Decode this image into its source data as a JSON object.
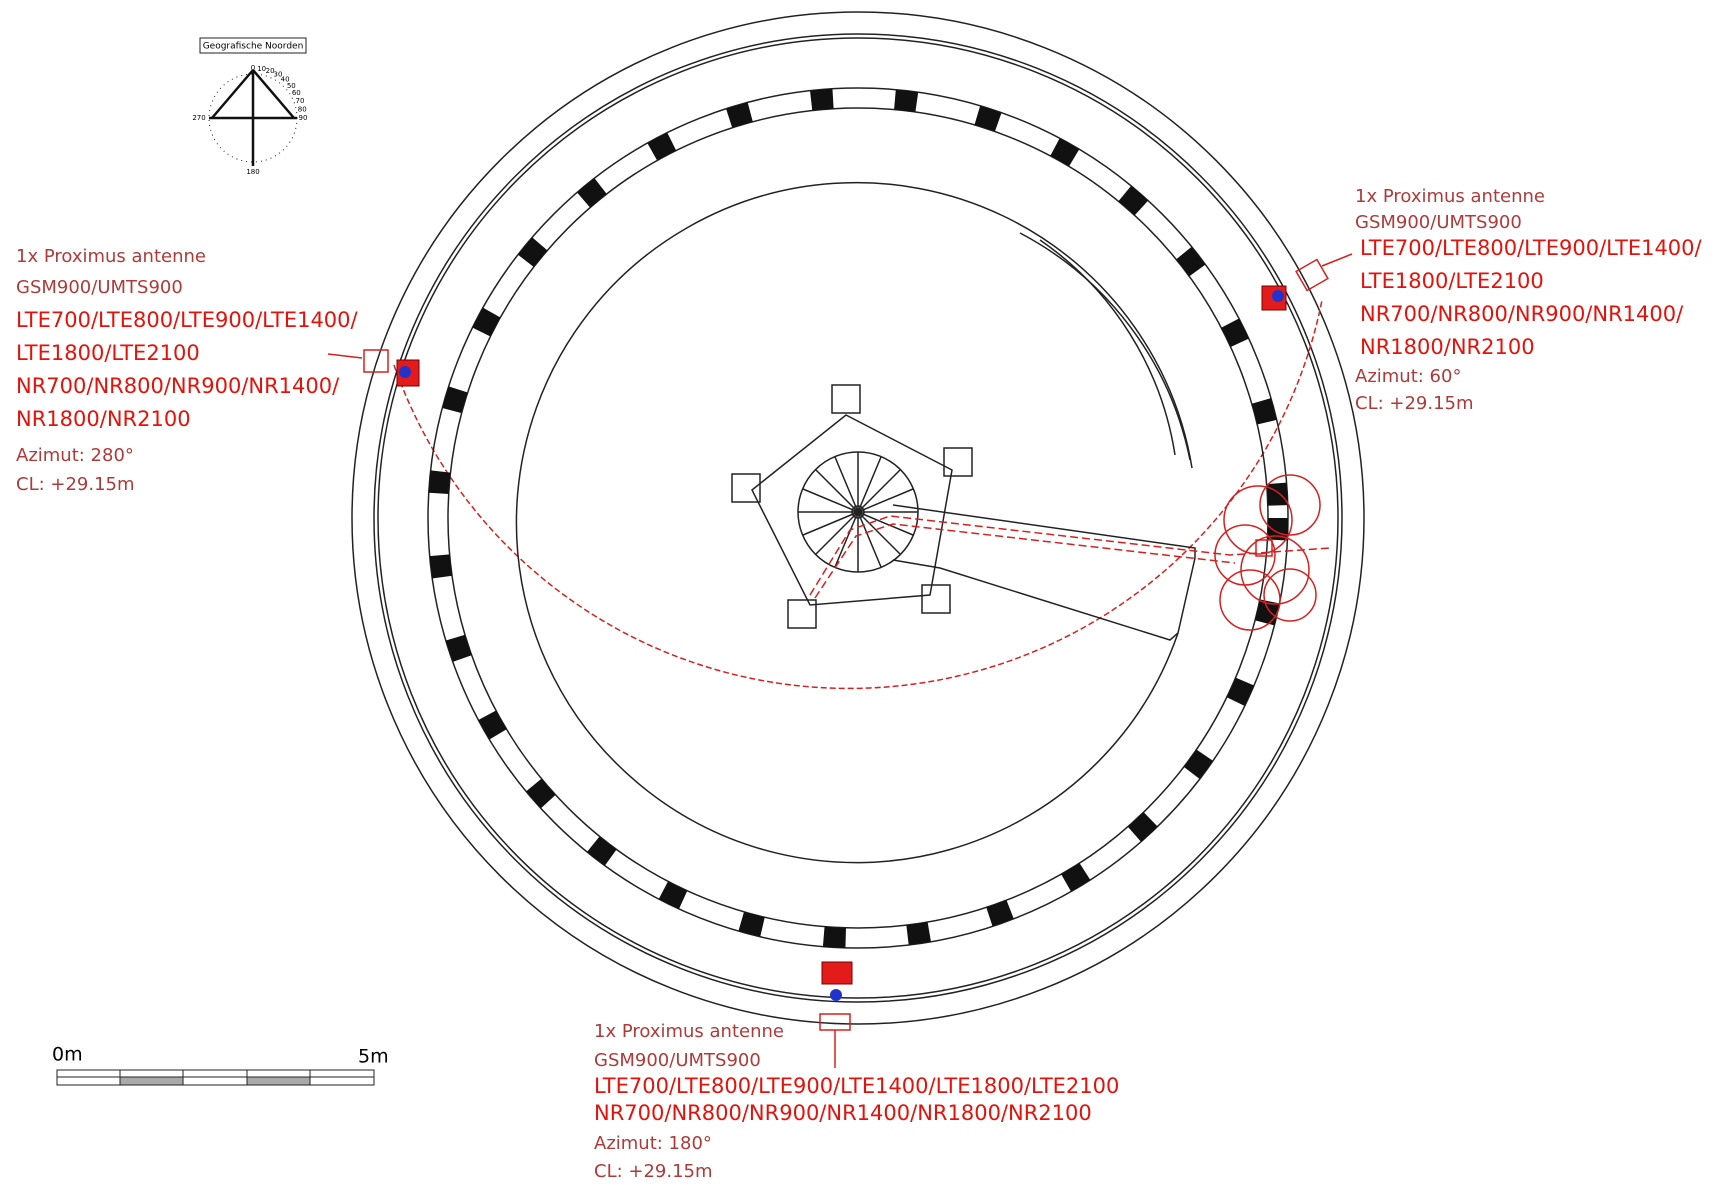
{
  "compass": {
    "title": "Geografische Noorden",
    "labels": [
      "0",
      "10",
      "20",
      "30",
      "40",
      "50",
      "60",
      "70",
      "80",
      "90",
      "180",
      "270"
    ]
  },
  "scale_bar": {
    "start": "0m",
    "end": "5m"
  },
  "antennas": [
    {
      "title": "1x Proximus antenne",
      "bands_2g3g": "GSM900/UMTS900",
      "lte": [
        "LTE700/LTE800/LTE900/LTE1400/",
        "LTE1800/LTE2100"
      ],
      "nr": [
        "NR700/NR800/NR900/NR1400/",
        "NR1800/NR2100"
      ],
      "azimuth": "Azimut: 280°",
      "cl": "CL: +29.15m"
    },
    {
      "title": "1x Proximus antenne",
      "bands_2g3g": "GSM900/UMTS900",
      "lte": [
        "LTE700/LTE800/LTE900/LTE1400/",
        "LTE1800/LTE2100"
      ],
      "nr": [
        "NR700/NR800/NR900/NR1400/",
        "NR1800/NR2100"
      ],
      "azimuth": "Azimut: 60°",
      "cl": "CL: +29.15m"
    },
    {
      "title": "1x Proximus antenne",
      "bands_2g3g": "GSM900/UMTS900",
      "lte": [
        "LTE700/LTE800/LTE900/LTE1400/LTE1800/LTE2100"
      ],
      "nr": [
        "NR700/NR800/NR900/NR1400/NR1800/NR2100"
      ],
      "azimuth": "Azimut: 180°",
      "cl": "CL: +29.15m"
    }
  ]
}
